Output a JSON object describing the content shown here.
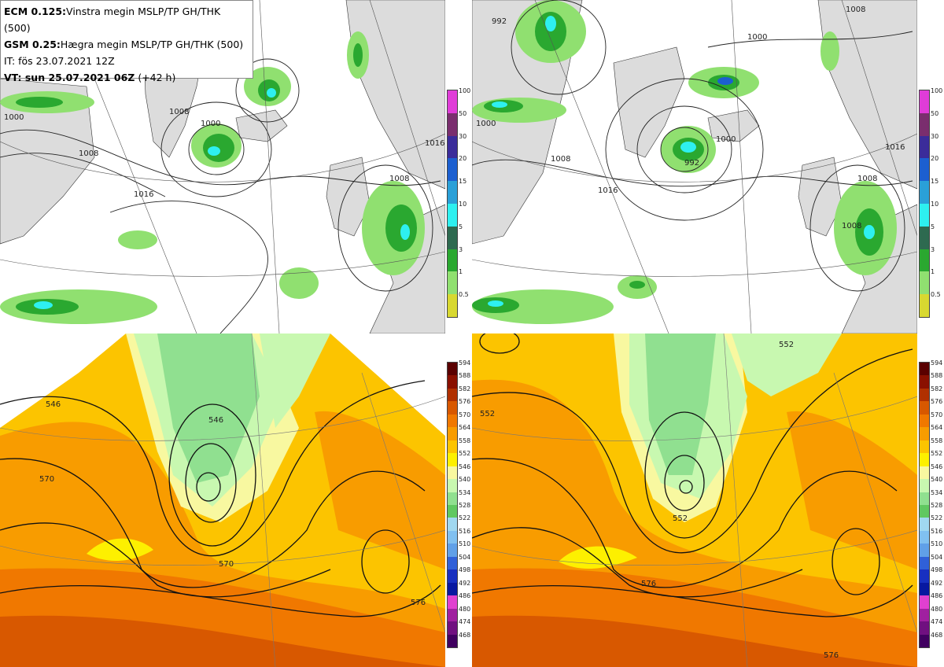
{
  "header": {
    "line1_bold": "ECM 0.125:",
    "line1_rest": "Vinstra megin MSLP/TP GH/THK (500)",
    "line2_bold": "GSM 0.25:",
    "line2_rest": "Hægra megin MSLP/TP GH/THK (500)",
    "line3": "IT: fös 23.07.2021 12Z",
    "line4_bold": "VT: sun 25.07.2021 06Z",
    "line4_rest": " (+42 h)"
  },
  "precip_scale": {
    "labels": [
      "100",
      "50",
      "30",
      "20",
      "15",
      "10",
      "5",
      "3",
      "1",
      "0.5"
    ],
    "colors": [
      "#e03cd8",
      "#7a2e6e",
      "#3b2c9a",
      "#1c5fd0",
      "#2aa0d8",
      "#2ef0f0",
      "#2e6a50",
      "#2aa830",
      "#90e070",
      "#d8d830"
    ]
  },
  "thickness_scale": {
    "labels": [
      "594",
      "588",
      "582",
      "576",
      "570",
      "564",
      "558",
      "552",
      "546",
      "540",
      "534",
      "528",
      "522",
      "516",
      "510",
      "504",
      "498",
      "492",
      "486",
      "480",
      "474",
      "468"
    ],
    "colors": [
      "#5a0000",
      "#8a1000",
      "#b03000",
      "#d85800",
      "#f07800",
      "#f89c00",
      "#fcc400",
      "#fdf000",
      "#f8f8a0",
      "#c8f8b0",
      "#90e090",
      "#60c860",
      "#a0d8f0",
      "#80c0f0",
      "#60a0e8",
      "#3060d8",
      "#1830c0",
      "#0818a0",
      "#e040d0",
      "#a020a0",
      "#701080",
      "#400060"
    ]
  },
  "maps": {
    "ecm_mslp": {
      "contour_labels": [
        "1000",
        "1008",
        "1016",
        "1016",
        "1008",
        "1000",
        "1008"
      ]
    },
    "gsm_mslp": {
      "contour_labels": [
        "992",
        "1008",
        "1008",
        "1000",
        "992",
        "1000",
        "1016",
        "1016",
        "1008",
        "1008",
        "1000"
      ]
    },
    "ecm_gh": {
      "contour_labels": [
        "546",
        "546",
        "570",
        "570",
        "576"
      ]
    },
    "gsm_gh": {
      "contour_labels": [
        "552",
        "552",
        "552",
        "576",
        "576"
      ]
    }
  }
}
